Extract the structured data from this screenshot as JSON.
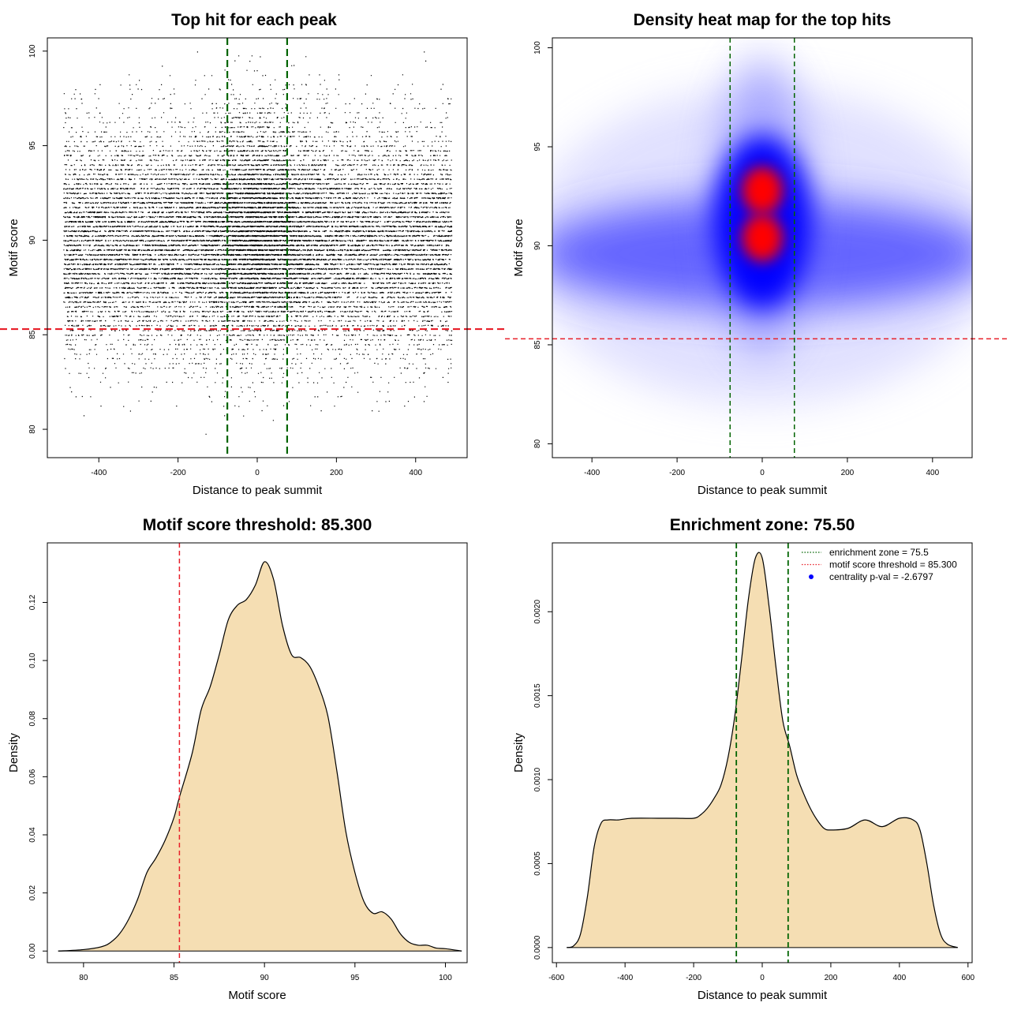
{
  "chart_data": [
    {
      "id": "p1",
      "type": "scatter",
      "title": "Top hit for each peak",
      "xlabel": "Distance to peak summit",
      "ylabel": "Motif score",
      "xlim": [
        -530,
        530
      ],
      "ylim": [
        78.5,
        100.7
      ],
      "xticks": [
        -400,
        -200,
        0,
        200,
        400
      ],
      "yticks": [
        80,
        85,
        90,
        95,
        100
      ],
      "x_range": [
        -490,
        490
      ],
      "y_distribution": {
        "mean": 90.0,
        "sd": 2.9
      },
      "n_points": 16000,
      "central_excess": {
        "x_sd": 75,
        "y_mean": 90.7,
        "n_points": 4000
      },
      "vlines": [
        {
          "x": -75.5,
          "color": "#006400",
          "style": "dashed"
        },
        {
          "x": 75.5,
          "color": "#006400",
          "style": "dashed"
        }
      ],
      "hlines": [
        {
          "y": 85.3,
          "color": "#e8202a",
          "style": "dashed"
        }
      ],
      "grid": false
    },
    {
      "id": "p2",
      "type": "heatmap",
      "title": "Density heat map for the top hits",
      "xlabel": "Distance to peak summit",
      "ylabel": "Motif score",
      "xlim": [
        -493,
        493
      ],
      "ylim": [
        79.3,
        100.5
      ],
      "xticks": [
        -400,
        -200,
        0,
        200,
        400
      ],
      "yticks": [
        80,
        85,
        90,
        95,
        100
      ],
      "colors": [
        "#ffffff",
        "#0000ff",
        "#ff0000"
      ],
      "density_peaks": [
        {
          "x": 0,
          "y": 92.8,
          "level": "high"
        },
        {
          "x": 0,
          "y": 90.4,
          "level": "high"
        }
      ],
      "vlines": [
        {
          "x": -75.5,
          "color": "#006400",
          "style": "dashed"
        },
        {
          "x": 75.5,
          "color": "#006400",
          "style": "dashed"
        }
      ],
      "hlines": [
        {
          "y": 85.3,
          "color": "#e8202a",
          "style": "dashed"
        }
      ],
      "grid": false
    },
    {
      "id": "p3",
      "type": "area",
      "title": "Motif score threshold: 85.300",
      "xlabel": "Motif score",
      "ylabel": "Density",
      "xlim": [
        78,
        101.2
      ],
      "ylim": [
        -0.004,
        0.1405
      ],
      "xticks": [
        80,
        85,
        90,
        95,
        100
      ],
      "yticks": [
        0.0,
        0.02,
        0.04,
        0.06,
        0.08,
        0.1,
        0.12
      ],
      "ytick_labels": [
        "0.00",
        "0.02",
        "0.04",
        "0.06",
        "0.08",
        "0.10",
        "0.12"
      ],
      "fill": "#f5deb3",
      "x": [
        78.6,
        80.0,
        81.0,
        81.5,
        82.0,
        82.5,
        83.0,
        83.5,
        84.0,
        84.5,
        85.0,
        85.3,
        86.0,
        86.5,
        87.0,
        87.5,
        88.0,
        88.5,
        89.0,
        89.5,
        90.0,
        90.5,
        91.0,
        91.5,
        92.0,
        92.5,
        93.0,
        93.5,
        94.0,
        94.5,
        95.0,
        95.5,
        96.0,
        96.5,
        97.0,
        97.5,
        98.0,
        98.5,
        99.0,
        99.5,
        100.0,
        100.9
      ],
      "values": [
        0.0,
        0.0005,
        0.0015,
        0.003,
        0.006,
        0.011,
        0.018,
        0.027,
        0.032,
        0.038,
        0.046,
        0.053,
        0.068,
        0.083,
        0.091,
        0.102,
        0.114,
        0.119,
        0.121,
        0.126,
        0.134,
        0.128,
        0.112,
        0.102,
        0.101,
        0.098,
        0.091,
        0.081,
        0.062,
        0.041,
        0.027,
        0.017,
        0.013,
        0.0135,
        0.011,
        0.006,
        0.003,
        0.002,
        0.002,
        0.001,
        0.0008,
        0.0
      ],
      "vlines": [
        {
          "x": 85.3,
          "color": "#e8202a",
          "style": "dashed"
        }
      ],
      "grid": false
    },
    {
      "id": "p4",
      "type": "area",
      "title": "Enrichment zone: 75.50",
      "xlabel": "Distance to peak summit",
      "ylabel": "Density",
      "xlim": [
        -612,
        612
      ],
      "ylim": [
        -9e-05,
        0.00241
      ],
      "xticks": [
        -600,
        -400,
        -200,
        0,
        200,
        400,
        600
      ],
      "yticks": [
        0.0,
        0.0005,
        0.001,
        0.0015,
        0.002
      ],
      "ytick_labels": [
        "0.0000",
        "0.0005",
        "0.0010",
        "0.0015",
        "0.0020"
      ],
      "fill": "#f5deb3",
      "x": [
        -570,
        -550,
        -530,
        -510,
        -490,
        -470,
        -450,
        -420,
        -380,
        -300,
        -250,
        -200,
        -180,
        -160,
        -140,
        -120,
        -100,
        -80,
        -60,
        -40,
        -20,
        0,
        20,
        40,
        60,
        80,
        100,
        120,
        140,
        160,
        180,
        200,
        250,
        300,
        350,
        400,
        440,
        460,
        480,
        500,
        520,
        540,
        570
      ],
      "values": [
        0.0,
        1e-05,
        8e-05,
        0.0003,
        0.0006,
        0.00074,
        0.00076,
        0.00076,
        0.00077,
        0.00077,
        0.00077,
        0.00077,
        0.00079,
        0.00083,
        0.00089,
        0.00097,
        0.00113,
        0.00138,
        0.00172,
        0.00208,
        0.00232,
        0.00232,
        0.00203,
        0.00167,
        0.00135,
        0.0012,
        0.00103,
        0.00092,
        0.00083,
        0.00076,
        0.00071,
        0.0007,
        0.00071,
        0.00076,
        0.00072,
        0.00077,
        0.00076,
        0.0007,
        0.0005,
        0.00025,
        8e-05,
        2e-05,
        0.0
      ],
      "vlines": [
        {
          "x": -75.5,
          "color": "#006400",
          "style": "dashed"
        },
        {
          "x": 75.5,
          "color": "#006400",
          "style": "dashed"
        }
      ],
      "legend": {
        "position": "top-right",
        "entries": [
          {
            "label": "enrichment zone = 75.5",
            "color": "#006400",
            "kind": "dotted-line"
          },
          {
            "label": "motif score threshold = 85.300",
            "color": "#e8202a",
            "kind": "dotted-line"
          },
          {
            "label": "centrality p-val = -2.6797",
            "color": "#0000ff",
            "kind": "point"
          }
        ]
      },
      "grid": false
    }
  ]
}
